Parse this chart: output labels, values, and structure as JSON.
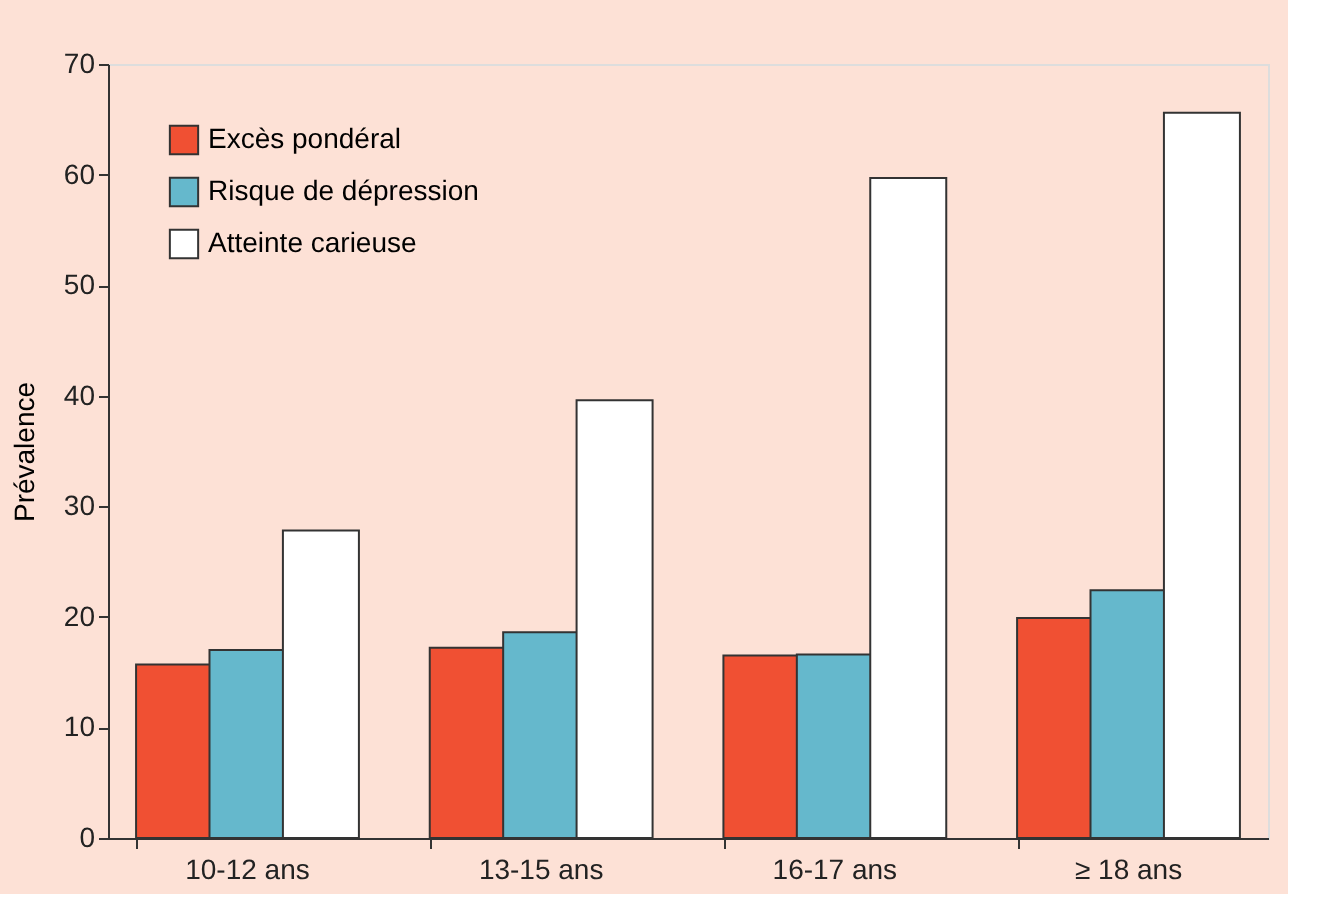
{
  "chart_data": {
    "type": "bar",
    "ylabel": "Prévalence",
    "categories": [
      "10-12 ans",
      "13-15 ans",
      "16-17 ans",
      "≥ 18 ans"
    ],
    "series": [
      {
        "name": "Excès pondéral",
        "color": "#f05033",
        "values": [
          15.7,
          17.2,
          16.5,
          19.9
        ]
      },
      {
        "name": "Risque de dépression",
        "color": "#65b8cc",
        "values": [
          17.0,
          18.6,
          16.6,
          22.4
        ]
      },
      {
        "name": "Atteinte carieuse",
        "color": "#ffffff",
        "values": [
          27.8,
          39.6,
          59.7,
          65.6
        ]
      }
    ],
    "ylim": [
      0,
      70
    ],
    "yticks": [
      0,
      10,
      20,
      30,
      40,
      50,
      60,
      70
    ],
    "grid": false,
    "legend": "top left"
  }
}
